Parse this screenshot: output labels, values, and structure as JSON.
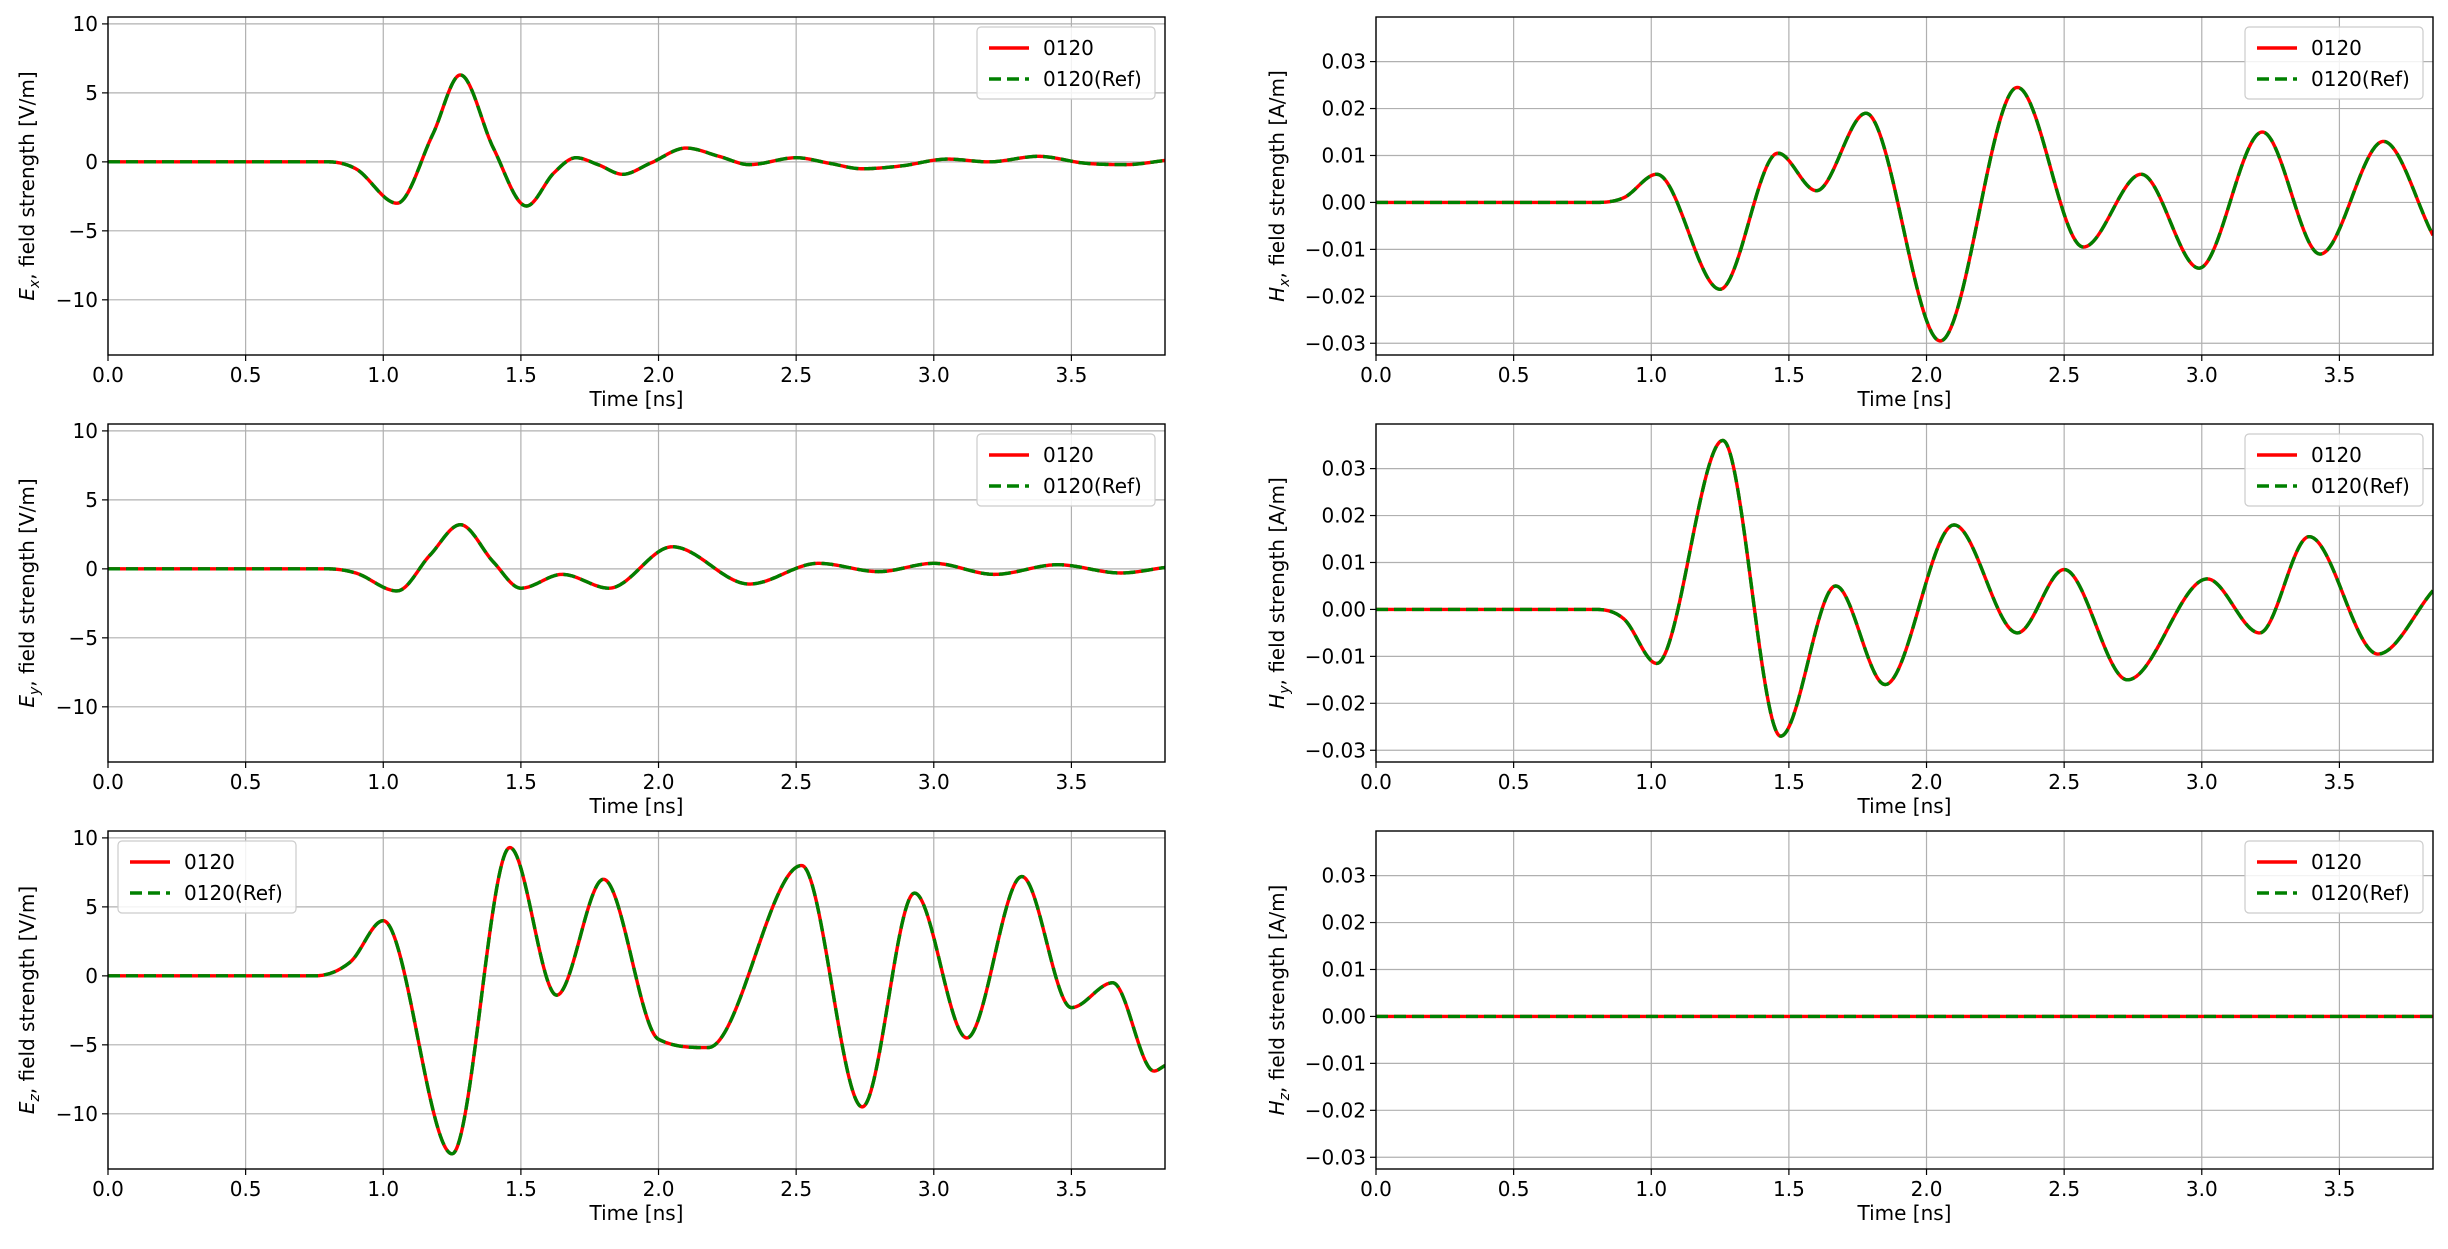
{
  "chart_data": [
    {
      "type": "line",
      "ylabel": "E_x, field strength [V/m]",
      "ylabel_sym": "E",
      "ylabel_sub": "x",
      "ylabel_rest": ", field strength [V/m]",
      "xlabel": "Time [ns]",
      "xlim": [
        0.0,
        3.84
      ],
      "ylim": [
        -14,
        10.5
      ],
      "xticks": [
        0.0,
        0.5,
        1.0,
        1.5,
        2.0,
        2.5,
        3.0,
        3.5
      ],
      "xtick_labels": [
        "0.0",
        "0.5",
        "1.0",
        "1.5",
        "2.0",
        "2.5",
        "3.0",
        "3.5"
      ],
      "yticks": [
        -10,
        -5,
        0,
        5,
        10
      ],
      "ytick_labels": [
        "−10",
        "−5",
        "0",
        "5",
        "10"
      ],
      "grid": true,
      "legend_loc": "upper right",
      "series": [
        {
          "name": "0120",
          "color": "#ff0000",
          "style": "solid"
        },
        {
          "name": "0120(Ref)",
          "color": "#008000",
          "style": "dashed"
        }
      ],
      "x": [
        0.0,
        0.8,
        0.9,
        1.05,
        1.18,
        1.28,
        1.4,
        1.52,
        1.62,
        1.7,
        1.78,
        1.87,
        1.97,
        2.1,
        2.22,
        2.33,
        2.5,
        2.62,
        2.74,
        2.88,
        3.05,
        3.2,
        3.38,
        3.55,
        3.7,
        3.84
      ],
      "y": [
        0.0,
        0.0,
        -0.5,
        -3.0,
        2.0,
        6.3,
        1.0,
        -3.2,
        -0.8,
        0.3,
        -0.2,
        -0.9,
        -0.1,
        1.0,
        0.4,
        -0.2,
        0.3,
        -0.1,
        -0.5,
        -0.3,
        0.2,
        0.0,
        0.4,
        -0.1,
        -0.2,
        0.1
      ]
    },
    {
      "type": "line",
      "ylabel": "H_x, field strength [A/m]",
      "ylabel_sym": "H",
      "ylabel_sub": "x",
      "ylabel_rest": ", field strength [A/m]",
      "xlabel": "Time [ns]",
      "xlim": [
        0.0,
        3.84
      ],
      "ylim": [
        -0.0325,
        0.0395
      ],
      "xticks": [
        0.0,
        0.5,
        1.0,
        1.5,
        2.0,
        2.5,
        3.0,
        3.5
      ],
      "xtick_labels": [
        "0.0",
        "0.5",
        "1.0",
        "1.5",
        "2.0",
        "2.5",
        "3.0",
        "3.5"
      ],
      "yticks": [
        -0.03,
        -0.02,
        -0.01,
        0.0,
        0.01,
        0.02,
        0.03
      ],
      "ytick_labels": [
        "−0.03",
        "−0.02",
        "−0.01",
        "0.00",
        "0.01",
        "0.02",
        "0.03"
      ],
      "grid": true,
      "legend_loc": "upper right",
      "series": [
        {
          "name": "0120",
          "color": "#ff0000",
          "style": "solid"
        },
        {
          "name": "0120(Ref)",
          "color": "#008000",
          "style": "dashed"
        }
      ],
      "x": [
        0.0,
        0.8,
        0.9,
        1.02,
        1.25,
        1.46,
        1.6,
        1.78,
        2.05,
        2.33,
        2.57,
        2.78,
        2.99,
        3.22,
        3.43,
        3.66,
        3.84
      ],
      "y": [
        0.0,
        0.0,
        0.001,
        0.006,
        -0.0185,
        0.0105,
        0.0025,
        0.019,
        -0.0295,
        0.0245,
        -0.0095,
        0.006,
        -0.014,
        0.015,
        -0.011,
        0.013,
        -0.007
      ]
    },
    {
      "type": "line",
      "ylabel": "E_y, field strength [V/m]",
      "ylabel_sym": "E",
      "ylabel_sub": "y",
      "ylabel_rest": ", field strength [V/m]",
      "xlabel": "Time [ns]",
      "xlim": [
        0.0,
        3.84
      ],
      "ylim": [
        -14,
        10.5
      ],
      "xticks": [
        0.0,
        0.5,
        1.0,
        1.5,
        2.0,
        2.5,
        3.0,
        3.5
      ],
      "xtick_labels": [
        "0.0",
        "0.5",
        "1.0",
        "1.5",
        "2.0",
        "2.5",
        "3.0",
        "3.5"
      ],
      "yticks": [
        -10,
        -5,
        0,
        5,
        10
      ],
      "ytick_labels": [
        "−10",
        "−5",
        "0",
        "5",
        "10"
      ],
      "grid": true,
      "legend_loc": "upper right",
      "series": [
        {
          "name": "0120",
          "color": "#ff0000",
          "style": "solid"
        },
        {
          "name": "0120(Ref)",
          "color": "#008000",
          "style": "dashed"
        }
      ],
      "x": [
        0.0,
        0.8,
        0.9,
        1.05,
        1.17,
        1.28,
        1.4,
        1.5,
        1.65,
        1.82,
        2.05,
        2.33,
        2.58,
        2.8,
        3.0,
        3.22,
        3.45,
        3.68,
        3.84
      ],
      "y": [
        0.0,
        0.0,
        -0.3,
        -1.6,
        1.0,
        3.2,
        0.5,
        -1.4,
        -0.4,
        -1.4,
        1.6,
        -1.1,
        0.4,
        -0.2,
        0.4,
        -0.4,
        0.3,
        -0.3,
        0.1
      ]
    },
    {
      "type": "line",
      "ylabel": "H_y, field strength [A/m]",
      "ylabel_sym": "H",
      "ylabel_sub": "y",
      "ylabel_rest": ", field strength [A/m]",
      "xlabel": "Time [ns]",
      "xlim": [
        0.0,
        3.84
      ],
      "ylim": [
        -0.0325,
        0.0395
      ],
      "xticks": [
        0.0,
        0.5,
        1.0,
        1.5,
        2.0,
        2.5,
        3.0,
        3.5
      ],
      "xtick_labels": [
        "0.0",
        "0.5",
        "1.0",
        "1.5",
        "2.0",
        "2.5",
        "3.0",
        "3.5"
      ],
      "yticks": [
        -0.03,
        -0.02,
        -0.01,
        0.0,
        0.01,
        0.02,
        0.03
      ],
      "ytick_labels": [
        "−0.03",
        "−0.02",
        "−0.01",
        "0.00",
        "0.01",
        "0.02",
        "0.03"
      ],
      "grid": true,
      "legend_loc": "upper right",
      "series": [
        {
          "name": "0120",
          "color": "#ff0000",
          "style": "solid"
        },
        {
          "name": "0120(Ref)",
          "color": "#008000",
          "style": "dashed"
        }
      ],
      "x": [
        0.0,
        0.8,
        0.9,
        1.02,
        1.26,
        1.47,
        1.67,
        1.85,
        2.1,
        2.33,
        2.5,
        2.73,
        3.02,
        3.21,
        3.39,
        3.64,
        3.84
      ],
      "y": [
        0.0,
        0.0,
        -0.002,
        -0.0115,
        0.036,
        -0.027,
        0.005,
        -0.016,
        0.018,
        -0.005,
        0.0085,
        -0.015,
        0.0065,
        -0.005,
        0.0155,
        -0.0095,
        0.004
      ]
    },
    {
      "type": "line",
      "ylabel": "E_z, field strength [V/m]",
      "ylabel_sym": "E",
      "ylabel_sub": "z",
      "ylabel_rest": ", field strength [V/m]",
      "xlabel": "Time [ns]",
      "xlim": [
        0.0,
        3.84
      ],
      "ylim": [
        -14,
        10.5
      ],
      "xticks": [
        0.0,
        0.5,
        1.0,
        1.5,
        2.0,
        2.5,
        3.0,
        3.5
      ],
      "xtick_labels": [
        "0.0",
        "0.5",
        "1.0",
        "1.5",
        "2.0",
        "2.5",
        "3.0",
        "3.5"
      ],
      "yticks": [
        -10,
        -5,
        0,
        5,
        10
      ],
      "ytick_labels": [
        "−10",
        "−5",
        "0",
        "5",
        "10"
      ],
      "grid": true,
      "legend_loc": "upper left",
      "series": [
        {
          "name": "0120",
          "color": "#ff0000",
          "style": "solid"
        },
        {
          "name": "0120(Ref)",
          "color": "#008000",
          "style": "dashed"
        }
      ],
      "x": [
        0.0,
        0.75,
        0.88,
        1.0,
        1.25,
        1.46,
        1.63,
        1.8,
        2.0,
        2.18,
        2.52,
        2.74,
        2.93,
        3.12,
        3.32,
        3.5,
        3.65,
        3.8,
        3.84
      ],
      "y": [
        0.0,
        0.0,
        1.0,
        4.0,
        -12.9,
        9.3,
        -1.4,
        7.0,
        -4.6,
        -5.2,
        8.0,
        -9.5,
        6.0,
        -4.5,
        7.2,
        -2.3,
        -0.5,
        -6.9,
        -6.5
      ]
    },
    {
      "type": "line",
      "ylabel": "H_z, field strength [A/m]",
      "ylabel_sym": "H",
      "ylabel_sub": "z",
      "ylabel_rest": ", field strength [A/m]",
      "xlabel": "Time [ns]",
      "xlim": [
        0.0,
        3.84
      ],
      "ylim": [
        -0.0325,
        0.0395
      ],
      "xticks": [
        0.0,
        0.5,
        1.0,
        1.5,
        2.0,
        2.5,
        3.0,
        3.5
      ],
      "xtick_labels": [
        "0.0",
        "0.5",
        "1.0",
        "1.5",
        "2.0",
        "2.5",
        "3.0",
        "3.5"
      ],
      "yticks": [
        -0.03,
        -0.02,
        -0.01,
        0.0,
        0.01,
        0.02,
        0.03
      ],
      "ytick_labels": [
        "−0.03",
        "−0.02",
        "−0.01",
        "0.00",
        "0.01",
        "0.02",
        "0.03"
      ],
      "grid": true,
      "legend_loc": "upper right",
      "series": [
        {
          "name": "0120",
          "color": "#ff0000",
          "style": "solid"
        },
        {
          "name": "0120(Ref)",
          "color": "#008000",
          "style": "dashed"
        }
      ],
      "x": [
        0.0,
        3.84
      ],
      "y": [
        0.0,
        0.0
      ]
    }
  ]
}
